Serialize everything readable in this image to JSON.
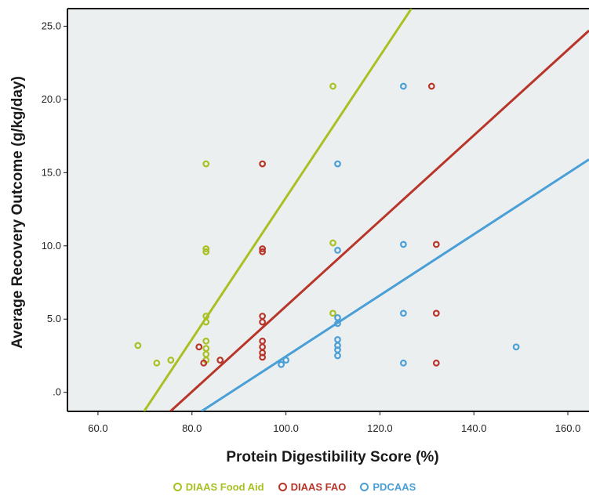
{
  "chart_data": {
    "type": "scatter",
    "title": "",
    "xlabel": "Protein Digestibility Score (%)",
    "ylabel": "Average Recovery Outcome (g/kg/day)",
    "xlim": [
      53.5,
      164.5
    ],
    "ylim": [
      -1.3,
      26.2
    ],
    "x_ticks": [
      60,
      80,
      100,
      120,
      140,
      160
    ],
    "x_tick_labels": [
      "60.0",
      "80.0",
      "100.0",
      "120.0",
      "140.0",
      "160.0"
    ],
    "y_ticks": [
      0,
      5,
      10,
      15,
      20,
      25
    ],
    "y_tick_labels": [
      ".0",
      "5.0",
      "10.0",
      "15.0",
      "20.0",
      "25.0"
    ],
    "grid": false,
    "legend_position": "bottom-center",
    "plot_background": "#eceff0",
    "series": [
      {
        "name": "DIAAS Food Aid",
        "color": "#a9c023",
        "points": [
          [
            68.5,
            3.2
          ],
          [
            72.5,
            2.0
          ],
          [
            75.5,
            2.2
          ],
          [
            83.0,
            15.6
          ],
          [
            83.0,
            9.8
          ],
          [
            83.0,
            9.6
          ],
          [
            83.0,
            5.2
          ],
          [
            83.0,
            4.8
          ],
          [
            83.0,
            3.5
          ],
          [
            83.0,
            3.0
          ],
          [
            83.0,
            2.6
          ],
          [
            83.0,
            2.2
          ],
          [
            110.0,
            20.9
          ],
          [
            110.0,
            10.2
          ],
          [
            110.0,
            5.4
          ]
        ],
        "fit_line": [
          [
            69.8,
            -1.3
          ],
          [
            126.7,
            26.2
          ]
        ]
      },
      {
        "name": "DIAAS FAO",
        "color": "#b8352a",
        "points": [
          [
            81.5,
            3.1
          ],
          [
            82.5,
            2.0
          ],
          [
            86.0,
            2.2
          ],
          [
            95.0,
            15.6
          ],
          [
            95.0,
            9.8
          ],
          [
            95.0,
            9.6
          ],
          [
            95.0,
            5.2
          ],
          [
            95.0,
            4.8
          ],
          [
            95.0,
            3.5
          ],
          [
            95.0,
            3.1
          ],
          [
            95.0,
            2.7
          ],
          [
            95.0,
            2.4
          ],
          [
            131.0,
            20.9
          ],
          [
            132.0,
            10.1
          ],
          [
            132.0,
            5.4
          ],
          [
            132.0,
            2.0
          ]
        ],
        "fit_line": [
          [
            75.4,
            -1.3
          ],
          [
            164.5,
            24.7
          ]
        ]
      },
      {
        "name": "PDCAAS",
        "color": "#4a9fd6",
        "points": [
          [
            99.0,
            1.9
          ],
          [
            100.0,
            2.2
          ],
          [
            111.0,
            15.6
          ],
          [
            111.0,
            9.7
          ],
          [
            111.0,
            5.1
          ],
          [
            111.0,
            4.7
          ],
          [
            111.0,
            3.6
          ],
          [
            111.0,
            3.2
          ],
          [
            111.0,
            2.9
          ],
          [
            111.0,
            2.5
          ],
          [
            125.0,
            20.9
          ],
          [
            125.0,
            10.1
          ],
          [
            125.0,
            5.4
          ],
          [
            125.0,
            2.0
          ],
          [
            149.0,
            3.1
          ]
        ],
        "fit_line": [
          [
            82.0,
            -1.3
          ],
          [
            164.5,
            15.9
          ]
        ]
      }
    ]
  }
}
